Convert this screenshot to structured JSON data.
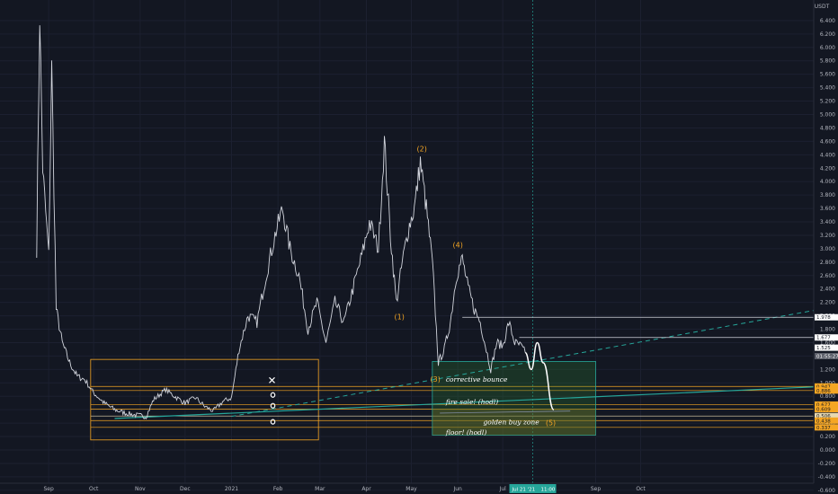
{
  "chart_data": {
    "type": "candlestick",
    "currency": "USDT",
    "y_ticks": [
      "6.400",
      "6.200",
      "6.000",
      "5.800",
      "5.600",
      "5.400",
      "5.200",
      "5.000",
      "4.800",
      "4.600",
      "4.400",
      "4.200",
      "4.000",
      "3.800",
      "3.600",
      "3.400",
      "3.200",
      "3.000",
      "2.800",
      "2.600",
      "2.400",
      "2.200",
      "2.000",
      "1.800",
      "1.600",
      "1.400",
      "1.200",
      "1.000",
      "0.800",
      "0.600",
      "0.400",
      "0.200",
      "0.000",
      "-0.200",
      "-0.400",
      "-0.600"
    ],
    "ylim": [
      -0.65,
      6.5
    ],
    "x_ticks": [
      {
        "label": "Sep",
        "x": "2020-09-01"
      },
      {
        "label": "Oct",
        "x": "2020-10-01"
      },
      {
        "label": "Nov",
        "x": "2020-11-01"
      },
      {
        "label": "Dec",
        "x": "2020-12-01"
      },
      {
        "label": "2021",
        "x": "2021-01-01"
      },
      {
        "label": "Feb",
        "x": "2021-02-01"
      },
      {
        "label": "Mar",
        "x": "2021-03-01"
      },
      {
        "label": "Apr",
        "x": "2021-04-01"
      },
      {
        "label": "May",
        "x": "2021-05-01"
      },
      {
        "label": "Jun",
        "x": "2021-06-01"
      },
      {
        "label": "Jul",
        "x": "2021-07-01"
      },
      {
        "label": "Sep",
        "x": "2021-09-01"
      },
      {
        "label": "Oct",
        "x": "2021-10-01"
      }
    ],
    "cursor_date_label": "Jul 21 '21",
    "cursor_time_label": "11:00",
    "price_path": [
      [
        "2020-08-24",
        3.0
      ],
      [
        "2020-08-26",
        6.5
      ],
      [
        "2020-08-28",
        4.2
      ],
      [
        "2020-09-01",
        2.9
      ],
      [
        "2020-09-03",
        5.7
      ],
      [
        "2020-09-06",
        2.1
      ],
      [
        "2020-09-10",
        1.6
      ],
      [
        "2020-09-15",
        1.3
      ],
      [
        "2020-09-20",
        1.1
      ],
      [
        "2020-09-25",
        1.05
      ],
      [
        "2020-10-01",
        0.85
      ],
      [
        "2020-10-08",
        0.7
      ],
      [
        "2020-10-15",
        0.6
      ],
      [
        "2020-10-22",
        0.55
      ],
      [
        "2020-10-29",
        0.52
      ],
      [
        "2020-11-05",
        0.5
      ],
      [
        "2020-11-10",
        0.75
      ],
      [
        "2020-11-18",
        0.9
      ],
      [
        "2020-11-24",
        0.8
      ],
      [
        "2020-12-01",
        0.7
      ],
      [
        "2020-12-08",
        0.78
      ],
      [
        "2020-12-14",
        0.65
      ],
      [
        "2020-12-20",
        0.58
      ],
      [
        "2020-12-26",
        0.72
      ],
      [
        "2021-01-01",
        0.78
      ],
      [
        "2021-01-06",
        1.5
      ],
      [
        "2021-01-12",
        2.0
      ],
      [
        "2021-01-18",
        1.9
      ],
      [
        "2021-01-24",
        2.6
      ],
      [
        "2021-01-30",
        3.2
      ],
      [
        "2021-02-04",
        3.6
      ],
      [
        "2021-02-09",
        3.0
      ],
      [
        "2021-02-15",
        2.6
      ],
      [
        "2021-02-21",
        1.8
      ],
      [
        "2021-02-27",
        2.2
      ],
      [
        "2021-03-05",
        1.6
      ],
      [
        "2021-03-11",
        2.2
      ],
      [
        "2021-03-17",
        1.9
      ],
      [
        "2021-03-23",
        2.4
      ],
      [
        "2021-03-29",
        2.9
      ],
      [
        "2021-04-03",
        3.4
      ],
      [
        "2021-04-09",
        3.0
      ],
      [
        "2021-04-13",
        4.6
      ],
      [
        "2021-04-17",
        3.2
      ],
      [
        "2021-04-21",
        2.2
      ],
      [
        "2021-04-25",
        2.8
      ],
      [
        "2021-04-29",
        3.3
      ],
      [
        "2021-05-03",
        3.6
      ],
      [
        "2021-05-07",
        4.3
      ],
      [
        "2021-05-11",
        3.6
      ],
      [
        "2021-05-15",
        2.8
      ],
      [
        "2021-05-19",
        1.3
      ],
      [
        "2021-05-23",
        1.5
      ],
      [
        "2021-05-27",
        1.9
      ],
      [
        "2021-05-31",
        2.6
      ],
      [
        "2021-06-04",
        2.85
      ],
      [
        "2021-06-08",
        2.4
      ],
      [
        "2021-06-12",
        2.1
      ],
      [
        "2021-06-16",
        1.9
      ],
      [
        "2021-06-20",
        1.5
      ],
      [
        "2021-06-23",
        1.2
      ],
      [
        "2021-06-27",
        1.6
      ],
      [
        "2021-07-01",
        1.55
      ],
      [
        "2021-07-05",
        1.9
      ],
      [
        "2021-07-09",
        1.6
      ],
      [
        "2021-07-13",
        1.55
      ],
      [
        "2021-07-16",
        1.45
      ]
    ],
    "projection_path": [
      [
        "2021-07-16",
        1.45
      ],
      [
        "2021-07-20",
        1.2
      ],
      [
        "2021-07-24",
        1.6
      ],
      [
        "2021-07-28",
        1.3
      ],
      [
        "2021-08-04",
        0.6
      ]
    ],
    "wave_labels": [
      {
        "text": "(1)",
        "x": "2021-04-23",
        "y": 1.95
      },
      {
        "text": "(2)",
        "x": "2021-05-08",
        "y": 4.45
      },
      {
        "text": "(3)",
        "x": "2021-05-17",
        "y": 1.02
      },
      {
        "text": "(4)",
        "x": "2021-06-01",
        "y": 3.02
      },
      {
        "text": "(5)",
        "x": "2021-08-02",
        "y": 0.37
      }
    ],
    "zone_labels": [
      {
        "text": "corrective bounce",
        "x": "2021-05-24",
        "y": 1.02
      },
      {
        "text": "fire sale! (hodl)",
        "x": "2021-05-24",
        "y": 0.68
      },
      {
        "text": "golden buy zone",
        "x": "2021-06-18",
        "y": 0.38
      },
      {
        "text": "floor! (hodl)",
        "x": "2021-05-24",
        "y": 0.23
      }
    ],
    "price_axis_labels": [
      {
        "text": "1.978",
        "y": 1.978,
        "bg": "#ffffff",
        "fg": "#131722"
      },
      {
        "text": "1.677",
        "y": 1.677,
        "bg": "#ffffff",
        "fg": "#131722"
      },
      {
        "text": "1.525",
        "y": 1.525,
        "bg": "#ffffff",
        "fg": "#131722"
      },
      {
        "text": "01:55:27",
        "y": 1.4,
        "bg": "#5d606b",
        "fg": "#ffffff"
      },
      {
        "text": "0.947",
        "y": 0.947,
        "bg": "#f5a623",
        "fg": "#131722"
      },
      {
        "text": "0.886",
        "y": 0.886,
        "bg": "#f5a623",
        "fg": "#131722"
      },
      {
        "text": "0.677",
        "y": 0.677,
        "bg": "#f5a623",
        "fg": "#131722"
      },
      {
        "text": "0.609",
        "y": 0.609,
        "bg": "#f5a623",
        "fg": "#131722"
      },
      {
        "text": "0.506",
        "y": 0.506,
        "bg": "#e8d9b0",
        "fg": "#131722"
      },
      {
        "text": "0.438",
        "y": 0.438,
        "bg": "#f5a623",
        "fg": "#131722"
      },
      {
        "text": "0.337",
        "y": 0.337,
        "bg": "#f5a623",
        "fg": "#131722"
      }
    ],
    "colors": {
      "price": "#d1d4dc",
      "support": "#26a69a",
      "fib": "#f5a623",
      "zone": "#1b5e20",
      "cursor": "#26a69a"
    }
  }
}
